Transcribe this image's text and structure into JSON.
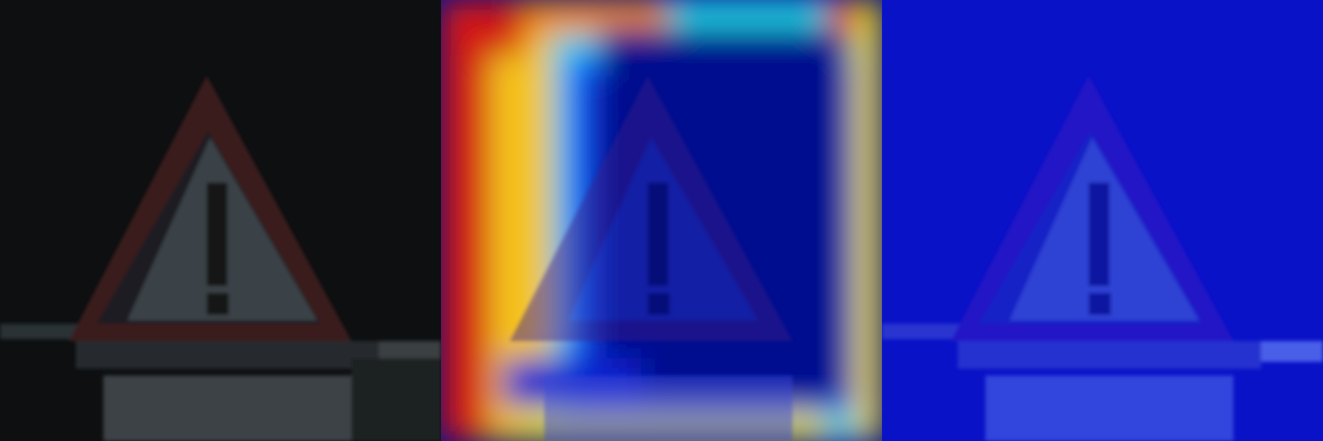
{
  "figure": {
    "panels": [
      {
        "id": "original",
        "kind": "photo",
        "subject": "warning-triangle-sign",
        "background": "#0d0f11"
      },
      {
        "id": "heatmap-overlay",
        "kind": "attention-heatmap",
        "colormap": "jet",
        "background": "#05108a"
      },
      {
        "id": "masked",
        "kind": "blue-tinted-photo",
        "background": "#0a12c8"
      }
    ],
    "colors": {
      "sign_border": "#3a1c1c",
      "sign_face": "#3b4347",
      "plate": "#3d4246",
      "heat_low": "#060f86",
      "heat_mid": "#1fd6e8",
      "heat_high": "#d60f0f",
      "tint_face": "#2f42d4"
    }
  }
}
